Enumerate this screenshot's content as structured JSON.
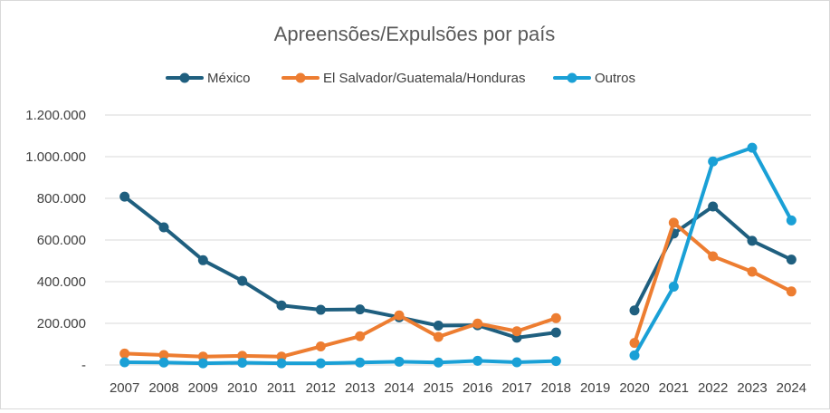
{
  "chart_data": {
    "type": "line",
    "title": "Apreensões/Expulsões por país",
    "xlabel": "",
    "ylabel": "",
    "categories": [
      "2007",
      "2008",
      "2009",
      "2010",
      "2011",
      "2012",
      "2013",
      "2014",
      "2015",
      "2016",
      "2017",
      "2018",
      "2019",
      "2020",
      "2021",
      "2022",
      "2023",
      "2024"
    ],
    "ylim": [
      0,
      1200000
    ],
    "yticks": [
      {
        "value": 0,
        "label": "-"
      },
      {
        "value": 200000,
        "label": "200.000"
      },
      {
        "value": 400000,
        "label": "400.000"
      },
      {
        "value": 600000,
        "label": "600.000"
      },
      {
        "value": 800000,
        "label": "800.000"
      },
      {
        "value": 1000000,
        "label": "1.000.000"
      },
      {
        "value": 1200000,
        "label": "1.200.000"
      }
    ],
    "grid": true,
    "legend_position": "top",
    "series": [
      {
        "name": "México",
        "color": "#1f5f7f",
        "values": [
          808000,
          661000,
          503000,
          404000,
          286000,
          265000,
          267000,
          229000,
          189000,
          191000,
          131000,
          156000,
          null,
          262000,
          631000,
          761000,
          596000,
          506000
        ]
      },
      {
        "name": "El Salvador/Guatemala/Honduras",
        "color": "#ed7d31",
        "values": [
          55000,
          48000,
          40000,
          44000,
          40000,
          89000,
          138000,
          238000,
          135000,
          199000,
          162000,
          225000,
          null,
          106000,
          683000,
          522000,
          448000,
          353000
        ]
      },
      {
        "name": "Outros",
        "color": "#1aa0d6",
        "values": [
          13000,
          12000,
          8000,
          11000,
          8000,
          8000,
          12000,
          16000,
          12000,
          20000,
          13000,
          19000,
          null,
          46000,
          376000,
          977000,
          1043000,
          694000
        ]
      }
    ]
  }
}
